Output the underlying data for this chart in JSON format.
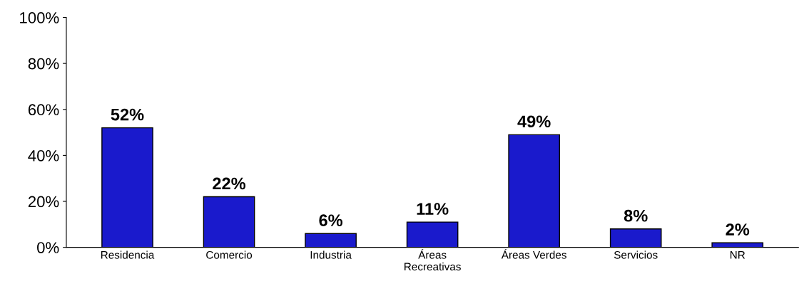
{
  "chart_data": {
    "type": "bar",
    "categories": [
      "Residencia",
      "Comercio",
      "Industria",
      "Áreas\nRecreativas",
      "Áreas Verdes",
      "Servicios",
      "NR"
    ],
    "values": [
      52,
      22,
      6,
      11,
      49,
      8,
      2
    ],
    "value_labels": [
      "52%",
      "22%",
      "6%",
      "11%",
      "49%",
      "8%",
      "2%"
    ],
    "color": "#1a1acc",
    "ylim": [
      0,
      100
    ],
    "yticks": [
      {
        "value": 0,
        "label": "0%"
      },
      {
        "value": 20,
        "label": "20%"
      },
      {
        "value": 40,
        "label": "40%"
      },
      {
        "value": 60,
        "label": "60%"
      },
      {
        "value": 80,
        "label": "80%"
      },
      {
        "value": 100,
        "label": "100%"
      }
    ],
    "grid": false,
    "legend": false
  }
}
